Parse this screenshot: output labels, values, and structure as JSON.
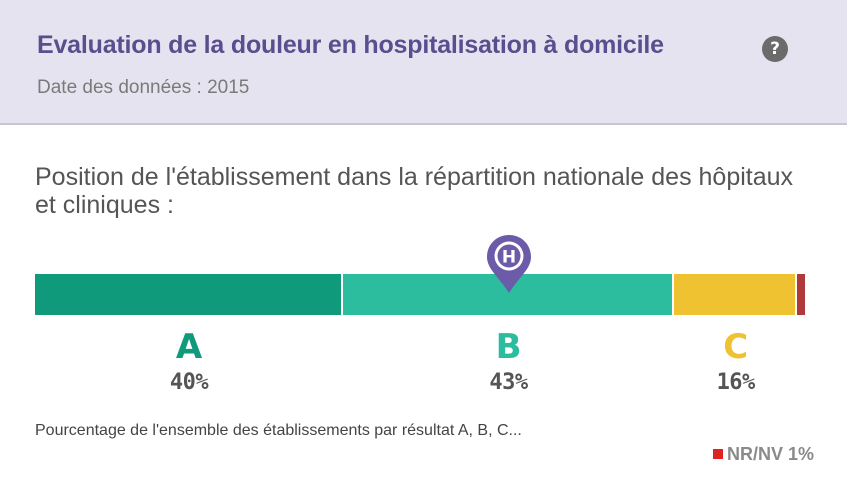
{
  "header": {
    "title": "Evaluation de la douleur en hospitalisation à domicile",
    "help_icon": "question-circle-icon",
    "date": "Date des données : 2015"
  },
  "position_text": "Position de l'établissement dans la répartition nationale des hôpitaux et cliniques :",
  "marker": {
    "icon": "map-pin-icon",
    "label": "H",
    "position_grade": "B"
  },
  "distribution": {
    "segments": [
      {
        "grade": "A",
        "percent": 40,
        "color": "#0f9a7c",
        "label": "40%"
      },
      {
        "grade": "B",
        "percent": 43,
        "color": "#2bbd9e",
        "label": "43%"
      },
      {
        "grade": "C",
        "percent": 16,
        "color": "#eec230",
        "label": "16%"
      },
      {
        "grade": "NR/NV",
        "percent": 1,
        "color": "#b03a3a",
        "label": "1%"
      }
    ]
  },
  "colors": {
    "header_bg": "#e6e3f0",
    "title": "#5b4e8e",
    "marker": "#6c5ba8",
    "nr_square": "#e02222"
  },
  "footnote": "Pourcentage de l'ensemble des établissements par résultat A, B, C...",
  "nr": {
    "label": "NR/NV",
    "value": "1%"
  }
}
